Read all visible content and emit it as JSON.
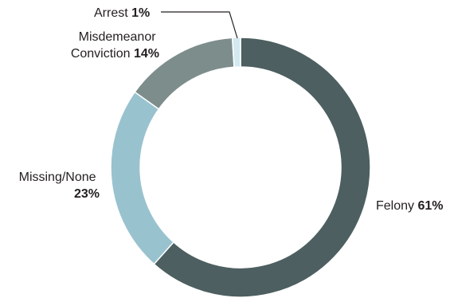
{
  "chart_data": {
    "type": "pie",
    "variant": "donut",
    "categories": [
      "Felony",
      "Missing/None",
      "Misdemeanor Conviction",
      "Arrest"
    ],
    "values": [
      61,
      23,
      14,
      1
    ],
    "value_labels": [
      "61%",
      "23%",
      "14%",
      "1%"
    ],
    "colors": [
      "#4d5f60",
      "#99c2cf",
      "#7d8d8c",
      "#d4e8f0"
    ],
    "legend": "none"
  },
  "labels": {
    "felony": {
      "name": "Felony",
      "value": "61%"
    },
    "missing": {
      "name": "Missing/None",
      "value": "23%"
    },
    "misdemeanor": {
      "line1": "Misdemeanor",
      "line2": "Conviction",
      "value": "14%"
    },
    "arrest": {
      "name": "Arrest",
      "value": "1%"
    }
  }
}
